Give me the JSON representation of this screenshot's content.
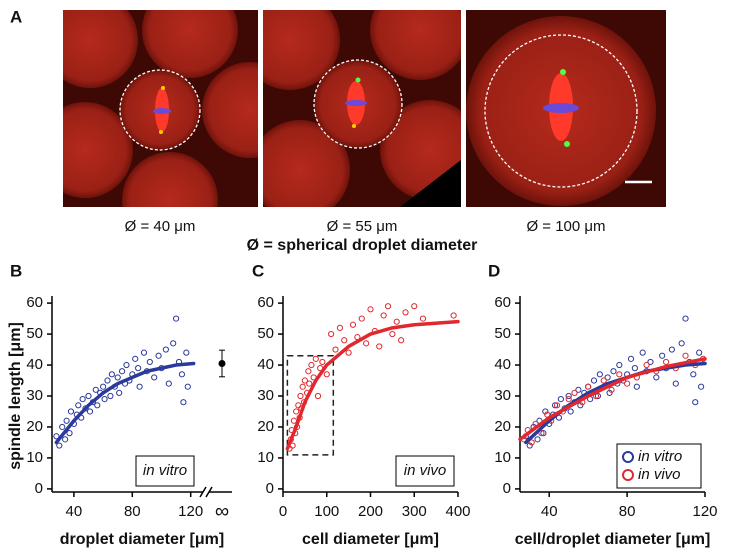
{
  "panel_labels": [
    "A",
    "B",
    "C",
    "D"
  ],
  "image_captions": [
    "Ø = 40 μm",
    "Ø = 55 μm",
    "Ø = 100 μm"
  ],
  "image_note": "Ø = spherical droplet diameter",
  "chart_data": [
    {
      "type": "scatter",
      "xlabel": "droplet diameter [μm]",
      "ylabel": "spindle length [μm]",
      "xlim": [
        25,
        125
      ],
      "ylim": [
        -1,
        61
      ],
      "xticks": [
        40,
        80,
        120
      ],
      "yticks": [
        0,
        10,
        20,
        30,
        40,
        50,
        60
      ],
      "annotation": "in vitro",
      "infinite_point": {
        "label": "∞",
        "value": 40.5,
        "error": 4.3
      },
      "series": [
        {
          "style": "markers",
          "color": "#2b3a9a",
          "x": [
            28,
            30,
            32,
            34,
            35,
            37,
            38,
            40,
            42,
            43,
            45,
            46,
            48,
            50,
            51,
            53,
            55,
            56,
            58,
            60,
            61,
            63,
            65,
            66,
            68,
            70,
            71,
            73,
            75,
            76,
            78,
            80,
            82,
            84,
            85,
            88,
            90,
            92,
            95,
            98,
            100,
            103,
            105,
            108,
            110,
            112,
            114,
            115,
            117,
            118
          ],
          "values": [
            17,
            14,
            20,
            16,
            22,
            18,
            25,
            21,
            24,
            27,
            23,
            29,
            26,
            30,
            25,
            28,
            32,
            27,
            31,
            33,
            29,
            35,
            30,
            37,
            33,
            36,
            31,
            38,
            34,
            40,
            35,
            37,
            42,
            39,
            33,
            44,
            38,
            41,
            36,
            43,
            39,
            45,
            34,
            47,
            55,
            41,
            37,
            28,
            44,
            33
          ]
        },
        {
          "style": "line",
          "color": "#2b3a9a",
          "x": [
            28,
            40,
            50,
            60,
            70,
            80,
            90,
            100,
            110,
            122
          ],
          "values": [
            15,
            22,
            27,
            31,
            34,
            36,
            38,
            39,
            40,
            40.5
          ]
        }
      ]
    },
    {
      "type": "scatter",
      "xlabel": "cell diameter [μm]",
      "xlim": [
        0,
        400
      ],
      "ylim": [
        -1,
        61
      ],
      "xticks": [
        0,
        100,
        200,
        300,
        400
      ],
      "yticks": [
        0,
        10,
        20,
        30,
        40,
        50,
        60
      ],
      "annotation": "in vivo",
      "highlight_box": {
        "x": [
          10,
          115
        ],
        "y": [
          11,
          43
        ]
      },
      "series": [
        {
          "style": "markers",
          "color": "#e0282e",
          "x": [
            15,
            18,
            20,
            22,
            25,
            28,
            30,
            32,
            35,
            38,
            40,
            42,
            45,
            48,
            50,
            55,
            58,
            60,
            65,
            70,
            75,
            80,
            85,
            90,
            100,
            110,
            120,
            130,
            140,
            150,
            160,
            170,
            180,
            190,
            200,
            210,
            220,
            230,
            240,
            250,
            260,
            270,
            280,
            300,
            320,
            390
          ],
          "values": [
            13,
            16,
            19,
            14,
            22,
            18,
            25,
            20,
            27,
            23,
            30,
            26,
            33,
            28,
            35,
            31,
            38,
            34,
            40,
            36,
            42,
            30,
            39,
            41,
            37,
            50,
            45,
            52,
            48,
            44,
            53,
            49,
            55,
            47,
            58,
            51,
            46,
            56,
            59,
            50,
            54,
            48,
            57,
            59,
            55,
            56
          ]
        },
        {
          "style": "line",
          "color": "#e0282e",
          "x": [
            10,
            30,
            50,
            75,
            100,
            150,
            200,
            250,
            300,
            400
          ],
          "values": [
            13,
            20,
            28,
            35,
            40,
            46,
            50,
            52,
            53,
            54
          ]
        }
      ]
    },
    {
      "type": "scatter",
      "xlabel": "cell/droplet diameter [μm]",
      "xlim": [
        25,
        120
      ],
      "ylim": [
        -1,
        61
      ],
      "xticks": [
        40,
        80,
        120
      ],
      "yticks": [
        0,
        10,
        20,
        30,
        40,
        50,
        60
      ],
      "legend": "lower right",
      "series": [
        {
          "name": "in vitro",
          "style": "markers",
          "color": "#2b3a9a",
          "x": [
            28,
            30,
            32,
            34,
            35,
            37,
            38,
            40,
            42,
            43,
            45,
            46,
            48,
            50,
            51,
            53,
            55,
            56,
            58,
            60,
            61,
            63,
            65,
            66,
            68,
            70,
            71,
            73,
            75,
            76,
            78,
            80,
            82,
            84,
            85,
            88,
            90,
            92,
            95,
            98,
            100,
            103,
            105,
            108,
            110,
            112,
            114,
            115,
            117,
            118
          ],
          "values": [
            17,
            14,
            20,
            16,
            22,
            18,
            25,
            21,
            24,
            27,
            23,
            29,
            26,
            30,
            25,
            28,
            32,
            27,
            31,
            33,
            29,
            35,
            30,
            37,
            33,
            36,
            31,
            38,
            34,
            40,
            35,
            37,
            42,
            39,
            33,
            44,
            38,
            41,
            36,
            43,
            39,
            45,
            34,
            47,
            55,
            41,
            37,
            28,
            44,
            33
          ]
        },
        {
          "name": "in vivo",
          "style": "markers",
          "color": "#e0282e",
          "x": [
            27,
            29,
            31,
            33,
            36,
            39,
            41,
            44,
            47,
            50,
            53,
            57,
            60,
            64,
            68,
            72,
            76,
            80,
            85,
            90,
            95,
            100,
            105,
            110,
            115,
            119
          ],
          "values": [
            16,
            19,
            15,
            21,
            18,
            24,
            22,
            27,
            25,
            29,
            31,
            28,
            33,
            30,
            35,
            32,
            37,
            34,
            36,
            40,
            38,
            41,
            39,
            43,
            40,
            42
          ]
        },
        {
          "style": "line",
          "color": "#2b3a9a",
          "x": [
            28,
            40,
            50,
            60,
            70,
            80,
            90,
            100,
            110,
            120
          ],
          "values": [
            15,
            22,
            27,
            31,
            34,
            36,
            38,
            39,
            40,
            40.5
          ]
        },
        {
          "style": "line",
          "color": "#e0282e",
          "x": [
            25,
            40,
            60,
            80,
            100,
            120
          ],
          "values": [
            16,
            23,
            30,
            36,
            39.5,
            42
          ]
        }
      ]
    }
  ]
}
